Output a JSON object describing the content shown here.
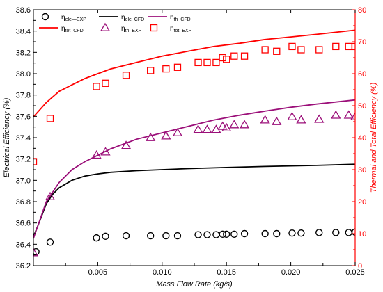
{
  "chart_data": {
    "type": "scatter",
    "xlabel": "Mass Flow Rate (kg/s)",
    "ylabel_left": "Electrical Efficiency (%)",
    "ylabel_right": "Thermal and Total Efficiency (%)",
    "xlim": [
      0,
      0.025
    ],
    "ylim_left": [
      36.2,
      38.6
    ],
    "ylim_right": [
      0,
      80
    ],
    "x_ticks": [
      "0.005",
      "0.010",
      "0.015",
      "0.020",
      "0.025"
    ],
    "x_tick_values": [
      0.005,
      0.01,
      0.015,
      0.02,
      0.025
    ],
    "y_left_ticks": [
      "36.2",
      "36.4",
      "36.6",
      "36.8",
      "37.0",
      "37.2",
      "37.4",
      "37.6",
      "37.8",
      "38.0",
      "38.2",
      "38.4",
      "38.6"
    ],
    "y_left_tick_values": [
      36.2,
      36.4,
      36.6,
      36.8,
      37.0,
      37.2,
      37.4,
      37.6,
      37.8,
      38.0,
      38.2,
      38.4,
      38.6
    ],
    "y_right_ticks": [
      "0",
      "10",
      "20",
      "30",
      "40",
      "50",
      "60",
      "70",
      "80"
    ],
    "y_right_tick_values": [
      0,
      10,
      20,
      30,
      40,
      50,
      60,
      70,
      80
    ],
    "grid": false,
    "legend_position": "top",
    "colors": {
      "black": "#000000",
      "red": "#ff0000",
      "purple": "#9b0f79"
    },
    "legend": [
      {
        "greek": "η",
        "sub": "ele—EXP",
        "kind": "circle",
        "color": "#000000"
      },
      {
        "greek": "η",
        "sub": "ele_CFD",
        "kind": "line",
        "color": "#000000"
      },
      {
        "greek": "η",
        "sub": "th_CFD",
        "kind": "line",
        "color": "#9b0f79"
      },
      {
        "greek": "η",
        "sub": "tot_CFD",
        "kind": "line",
        "color": "#ff0000"
      },
      {
        "greek": "η",
        "sub": "th_EXP",
        "kind": "triangle",
        "color": "#9b0f79"
      },
      {
        "greek": "η",
        "sub": "tot_EXP",
        "kind": "square",
        "color": "#ff0000"
      }
    ],
    "series": [
      {
        "name": "ηele_CFD",
        "kind": "line",
        "axis": "left",
        "color": "#000000",
        "x": [
          0.0,
          0.0005,
          0.001,
          0.0015,
          0.002,
          0.003,
          0.004,
          0.005,
          0.006,
          0.008,
          0.01,
          0.012,
          0.015,
          0.018,
          0.02,
          0.022,
          0.025
        ],
        "y": [
          36.47,
          36.62,
          36.78,
          36.87,
          36.93,
          37.0,
          37.04,
          37.06,
          37.075,
          37.09,
          37.1,
          37.11,
          37.12,
          37.13,
          37.135,
          37.14,
          37.15
        ]
      },
      {
        "name": "ηth_CFD",
        "kind": "line",
        "axis": "right",
        "color": "#9b0f79",
        "x": [
          0.0,
          0.001,
          0.002,
          0.003,
          0.004,
          0.005,
          0.006,
          0.008,
          0.01,
          0.012,
          0.014,
          0.016,
          0.018,
          0.02,
          0.022,
          0.025
        ],
        "y": [
          8.5,
          20.0,
          26.0,
          30.0,
          32.5,
          34.5,
          36.5,
          39.5,
          41.5,
          43.5,
          45.5,
          47.0,
          48.3,
          49.5,
          50.5,
          51.8
        ]
      },
      {
        "name": "ηtot_CFD",
        "kind": "line",
        "axis": "right",
        "color": "#ff0000",
        "x": [
          0.0,
          0.001,
          0.002,
          0.003,
          0.004,
          0.005,
          0.006,
          0.008,
          0.01,
          0.012,
          0.014,
          0.016,
          0.018,
          0.02,
          0.022,
          0.025
        ],
        "y": [
          46.5,
          51.0,
          54.5,
          56.5,
          58.5,
          60.0,
          61.5,
          63.5,
          65.5,
          67.0,
          68.5,
          69.5,
          70.7,
          71.5,
          72.3,
          73.6
        ]
      },
      {
        "name": "ηele_EXP",
        "kind": "circle",
        "axis": "left",
        "color": "#000000",
        "x": [
          0.0002,
          0.0013,
          0.0049,
          0.0056,
          0.0072,
          0.0091,
          0.0103,
          0.0112,
          0.0128,
          0.0135,
          0.0142,
          0.0147,
          0.015,
          0.0156,
          0.0164,
          0.018,
          0.0189,
          0.0201,
          0.0208,
          0.0222,
          0.0235,
          0.0245,
          0.025
        ],
        "y": [
          36.33,
          36.42,
          36.46,
          36.475,
          36.48,
          36.48,
          36.48,
          36.48,
          36.49,
          36.49,
          36.49,
          36.495,
          36.495,
          36.495,
          36.5,
          36.5,
          36.5,
          36.505,
          36.505,
          36.51,
          36.51,
          36.51,
          36.515
        ]
      },
      {
        "name": "ηth_EXP",
        "kind": "triangle",
        "axis": "right",
        "color": "#9b0f79",
        "x": [
          0.0,
          0.0013,
          0.0049,
          0.0056,
          0.0072,
          0.0091,
          0.0103,
          0.0112,
          0.0128,
          0.0135,
          0.0142,
          0.0147,
          0.015,
          0.0156,
          0.0164,
          0.018,
          0.0189,
          0.0201,
          0.0208,
          0.0222,
          0.0235,
          0.0245,
          0.025
        ],
        "y": [
          4.0,
          21.5,
          34.5,
          35.5,
          37.5,
          40.0,
          40.5,
          41.5,
          42.5,
          42.5,
          42.5,
          43.5,
          43.0,
          44.0,
          44.0,
          45.5,
          45.0,
          46.5,
          45.5,
          45.7,
          47.0,
          47.0,
          46.5
        ]
      },
      {
        "name": "ηtot_EXP",
        "kind": "square",
        "axis": "right",
        "color": "#ff0000",
        "x": [
          0.0,
          0.0013,
          0.0049,
          0.0056,
          0.0072,
          0.0091,
          0.0103,
          0.0112,
          0.0128,
          0.0135,
          0.0142,
          0.0147,
          0.015,
          0.0156,
          0.0164,
          0.018,
          0.0189,
          0.0201,
          0.0208,
          0.0222,
          0.0235,
          0.0245,
          0.025
        ],
        "y": [
          32.5,
          46.0,
          56.0,
          57.0,
          59.5,
          61.0,
          61.5,
          62.0,
          63.5,
          63.5,
          63.5,
          65.0,
          64.5,
          65.5,
          65.5,
          67.5,
          67.0,
          68.5,
          67.5,
          67.5,
          68.5,
          68.5,
          68.5
        ]
      }
    ]
  }
}
